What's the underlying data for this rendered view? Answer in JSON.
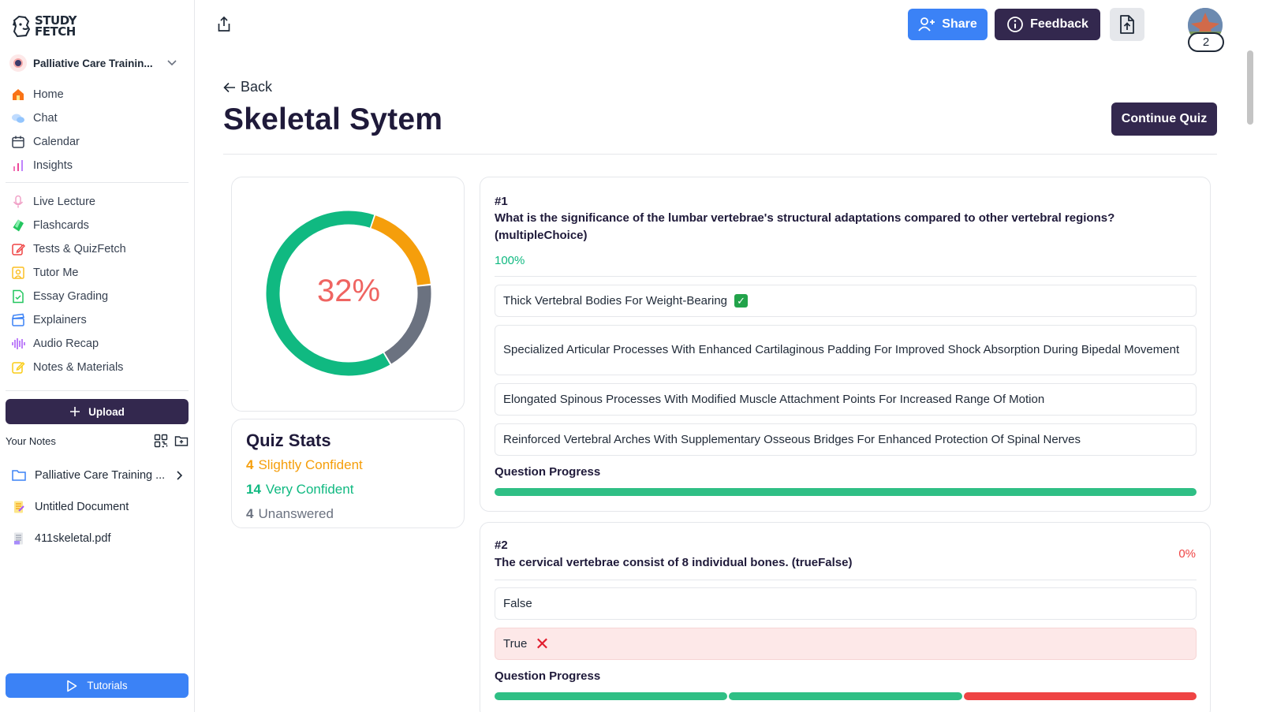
{
  "brand": {
    "line1": "STUDY",
    "line2": "FETCH"
  },
  "workspace": {
    "name": "Palliative Care Trainin..."
  },
  "nav_primary": [
    {
      "label": "Home",
      "icon": "home-icon",
      "color": "#f97316"
    },
    {
      "label": "Chat",
      "icon": "chat-icon",
      "color": "#93c5fd"
    },
    {
      "label": "Calendar",
      "icon": "calendar-icon",
      "color": "#374151"
    },
    {
      "label": "Insights",
      "icon": "insights-icon",
      "color": "#ec4899"
    }
  ],
  "nav_tools": [
    {
      "label": "Live Lecture",
      "icon": "microphone-icon",
      "color": "#f0a3c8"
    },
    {
      "label": "Flashcards",
      "icon": "flashcards-icon",
      "color": "#22c55e"
    },
    {
      "label": "Tests & QuizFetch",
      "icon": "pencil-icon",
      "color": "#ef4444"
    },
    {
      "label": "Tutor Me",
      "icon": "tutor-icon",
      "color": "#fbbf24"
    },
    {
      "label": "Essay Grading",
      "icon": "essay-icon",
      "color": "#22c55e"
    },
    {
      "label": "Explainers",
      "icon": "clapper-icon",
      "color": "#3b82f6"
    },
    {
      "label": "Audio Recap",
      "icon": "waveform-icon",
      "color": "#a855f7"
    },
    {
      "label": "Notes & Materials",
      "icon": "notes-icon",
      "color": "#facc15"
    }
  ],
  "upload": {
    "label": "Upload"
  },
  "your_notes": {
    "label": "Your Notes",
    "items": [
      {
        "label": "Palliative Care Training ...",
        "icon": "folder-icon",
        "has_chevron": true
      },
      {
        "label": "Untitled Document",
        "icon": "document-icon",
        "has_chevron": false
      },
      {
        "label": "411skeletal.pdf",
        "icon": "pdf-icon",
        "has_chevron": false
      }
    ]
  },
  "tutorials": {
    "label": "Tutorials"
  },
  "topbar": {
    "share_label": "Share",
    "feedback_label": "Feedback",
    "avatar_count": "2"
  },
  "header": {
    "back_label": "Back",
    "title": "Skeletal Sytem",
    "continue_label": "Continue Quiz"
  },
  "donut": {
    "percent_label": "32%",
    "segments": [
      {
        "name": "Very Confident",
        "value": 14,
        "color": "#10b981"
      },
      {
        "name": "Slightly Confident",
        "value": 4,
        "color": "#f59e0b"
      },
      {
        "name": "Unanswered",
        "value": 4,
        "color": "#6b7280"
      }
    ]
  },
  "quiz_stats": {
    "title": "Quiz Stats",
    "rows": [
      {
        "count": "4",
        "label": "Slightly Confident",
        "color": "#f59e0b"
      },
      {
        "count": "14",
        "label": "Very Confident",
        "color": "#10b981"
      },
      {
        "count": "4",
        "label": "Unanswered",
        "color": "#6b7280"
      }
    ]
  },
  "questions": [
    {
      "number": "#1",
      "text": "What is the significance of the lumbar vertebrae's structural adaptations compared to other vertebral regions? (multipleChoice)",
      "score": "100%",
      "score_color": "#10b981",
      "answers": [
        {
          "text": "Thick Vertebral Bodies For Weight-Bearing",
          "state": "correct"
        },
        {
          "text": "Specialized Articular Processes With Enhanced Cartilaginous Padding For Improved Shock Absorption During Bipedal Movement",
          "state": "none"
        },
        {
          "text": "Elongated Spinous Processes With Modified Muscle Attachment Points For Increased Range Of Motion",
          "state": "none"
        },
        {
          "text": "Reinforced Vertebral Arches With Supplementary Osseous Bridges For Enhanced Protection Of Spinal Nerves",
          "state": "none"
        }
      ],
      "progress_label": "Question Progress",
      "progress": [
        "#2fbf85"
      ]
    },
    {
      "number": "#2",
      "text": "The cervical vertebrae consist of 8 individual bones. (trueFalse)",
      "score": "0%",
      "score_color": "#ef4444",
      "answers": [
        {
          "text": "False",
          "state": "none"
        },
        {
          "text": "True",
          "state": "wrong"
        }
      ],
      "progress_label": "Question Progress",
      "progress": [
        "#2fbf85",
        "#2fbf85",
        "#ef4444"
      ]
    }
  ]
}
